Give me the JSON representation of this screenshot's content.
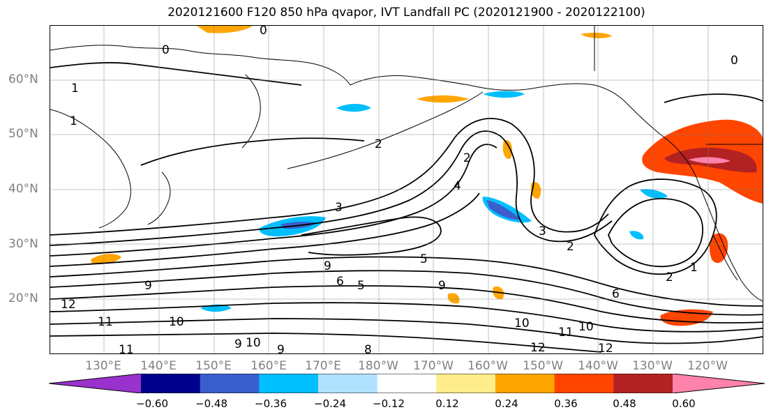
{
  "title": "2020121600 F120 850 hPa qvapor, IVT Landfall PC (2020121900 - 2020122100)",
  "lat_labels": [
    "60°N",
    "50°N",
    "40°N",
    "30°N",
    "20°N"
  ],
  "lon_labels": [
    "130°E",
    "140°E",
    "150°E",
    "160°E",
    "170°E",
    "180°W",
    "170°W",
    "160°W",
    "150°W",
    "140°W",
    "130°W",
    "120°W"
  ],
  "colorbar": {
    "ticks": [
      "−0.60",
      "−0.48",
      "−0.36",
      "−0.24",
      "−0.12",
      "0.12",
      "0.24",
      "0.36",
      "0.48",
      "0.60"
    ],
    "colors": [
      "#9932cc",
      "#00008b",
      "#3a5fcd",
      "#00bfff",
      "#b0e2ff",
      "#ffffff",
      "#ffec8b",
      "#ffa500",
      "#ff4500",
      "#b22222",
      "#ff82ab"
    ]
  },
  "contour_labels": [
    "0",
    "0",
    "0",
    "1",
    "1",
    "1",
    "2",
    "2",
    "2",
    "2",
    "3",
    "3",
    "4",
    "5",
    "5",
    "6",
    "6",
    "8",
    "9",
    "9",
    "9",
    "9",
    "9",
    "10",
    "10",
    "10",
    "10",
    "11",
    "11",
    "11",
    "12",
    "12",
    "12"
  ]
}
